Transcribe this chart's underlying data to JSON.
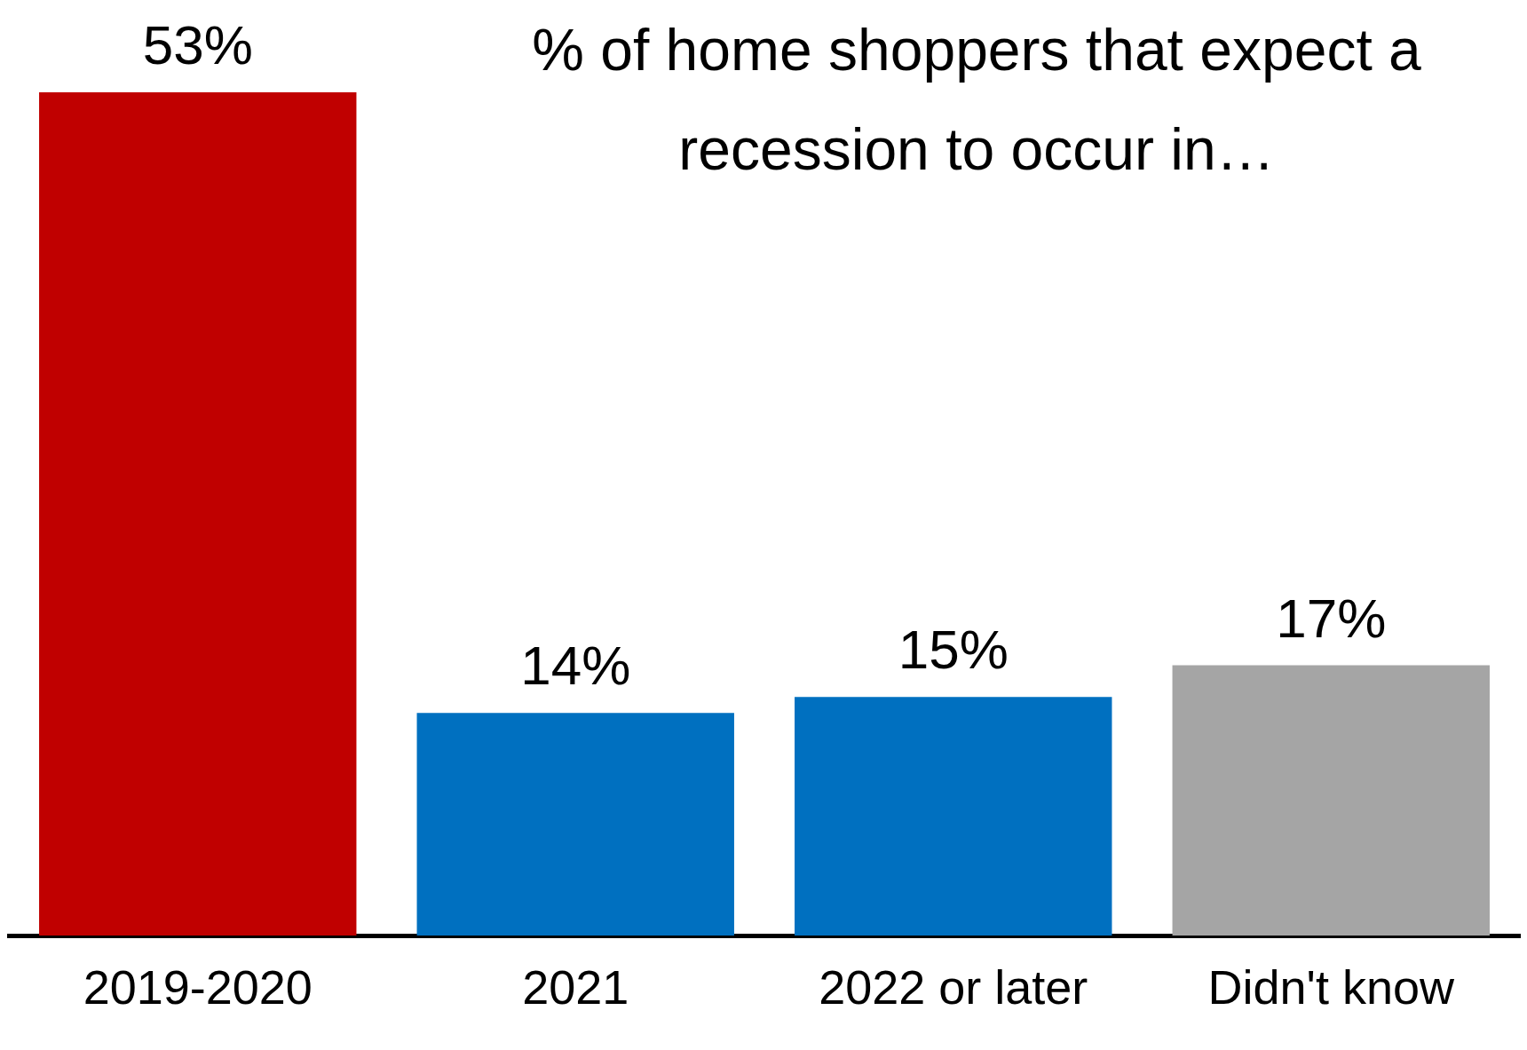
{
  "chart_data": {
    "type": "bar",
    "title": "% of home shoppers that expect a recession to occur in…",
    "categories": [
      "2019-2020",
      "2021",
      "2022 or later",
      "Didn't know"
    ],
    "values": [
      53,
      14,
      15,
      17
    ],
    "colors": [
      "#c00000",
      "#0070c0",
      "#0070c0",
      "#a5a5a5"
    ],
    "data_labels": true,
    "value_labels": [
      "53%",
      "14%",
      "15%",
      "17%"
    ],
    "grid": false,
    "legend": false
  }
}
